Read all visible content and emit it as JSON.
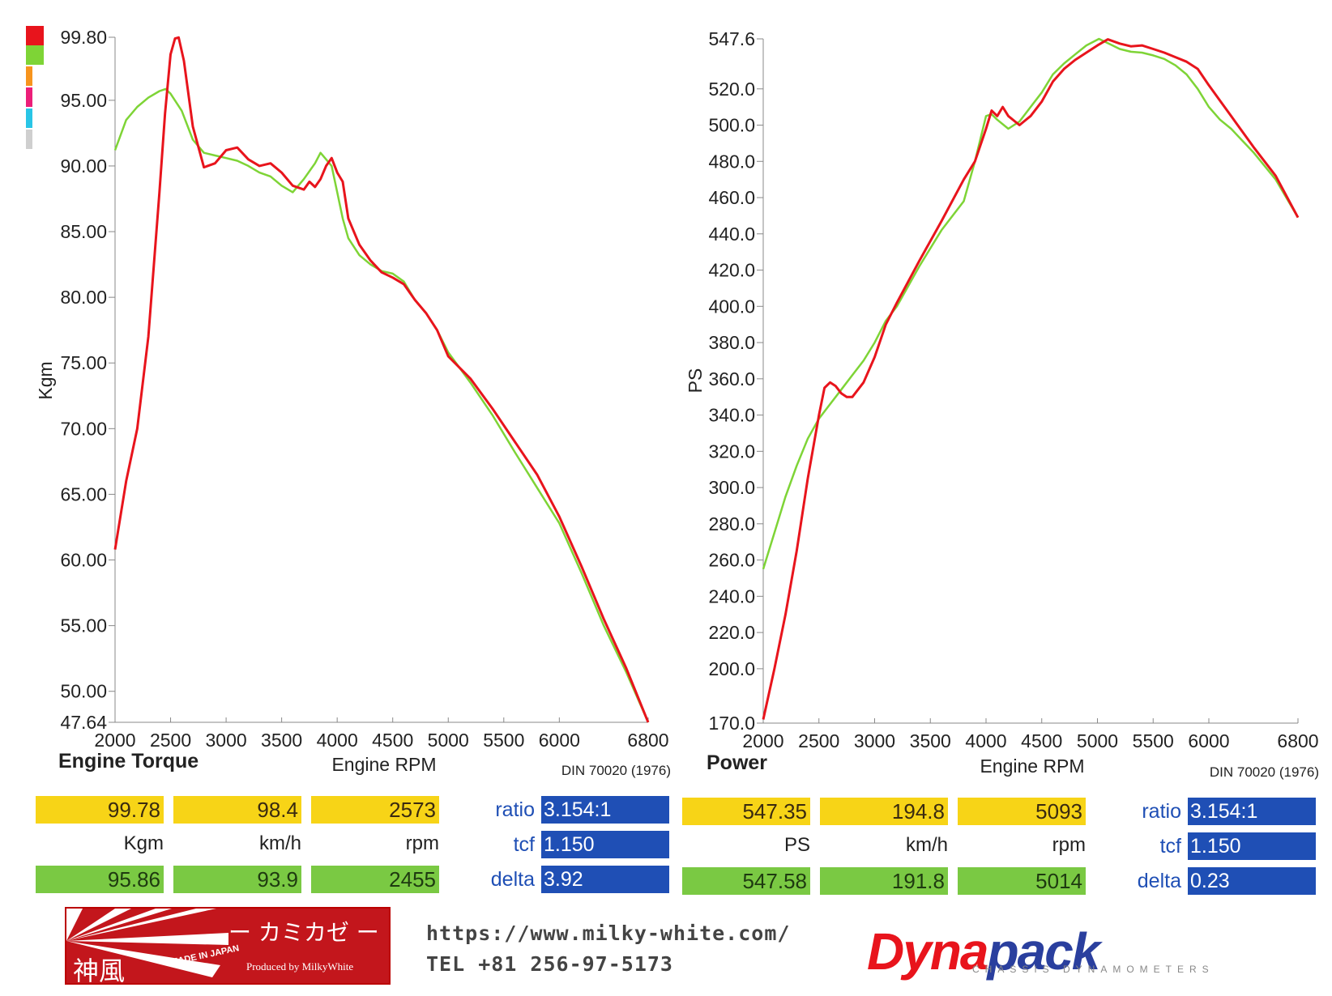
{
  "colors": {
    "run1": "#e8141c",
    "run2": "#7ed436",
    "yellow": "#f7d417",
    "green": "#7ac943",
    "blue": "#1f4fb5"
  },
  "legend_colors": [
    "#e8141c",
    "#7ed436",
    "#f7941d",
    "#ec1e79",
    "#29c5e6",
    "#cfcfcf"
  ],
  "chart_data": [
    {
      "type": "line",
      "title": "Engine Torque",
      "xlabel": "Engine RPM",
      "ylabel": "Kgm",
      "standard": "DIN 70020 (1976)",
      "xlim": [
        2000,
        6800
      ],
      "ylim": [
        47.64,
        99.8
      ],
      "x_ticks": [
        "2000",
        "2500",
        "3000",
        "3500",
        "4000",
        "4500",
        "5000",
        "5500",
        "6000",
        "6800"
      ],
      "y_ticks": [
        "47.64",
        "50.00",
        "55.00",
        "60.00",
        "65.00",
        "70.00",
        "75.00",
        "80.00",
        "85.00",
        "90.00",
        "95.00",
        "99.80"
      ],
      "series": [
        {
          "x": [
            2000,
            2100,
            2200,
            2300,
            2400,
            2450,
            2500,
            2540,
            2573,
            2620,
            2700,
            2800,
            2900,
            3000,
            3100,
            3200,
            3300,
            3400,
            3500,
            3600,
            3700,
            3750,
            3800,
            3850,
            3900,
            3950,
            4000,
            4050,
            4100,
            4200,
            4300,
            4400,
            4500,
            4600,
            4700,
            4800,
            4900,
            5000,
            5200,
            5400,
            5600,
            5800,
            6000,
            6200,
            6400,
            6600,
            6800
          ],
          "y": [
            60.8,
            66.0,
            70.0,
            77.0,
            88.0,
            94.0,
            98.5,
            99.7,
            99.78,
            98.0,
            93.0,
            89.9,
            90.2,
            91.2,
            91.4,
            90.5,
            90.0,
            90.2,
            89.5,
            88.5,
            88.2,
            88.8,
            88.4,
            89.0,
            90.0,
            90.6,
            89.5,
            88.8,
            86.0,
            84.0,
            82.8,
            81.9,
            81.5,
            81.0,
            79.8,
            78.8,
            77.5,
            75.5,
            73.8,
            71.5,
            69.0,
            66.5,
            63.3,
            59.5,
            55.5,
            51.8,
            47.64
          ]
        },
        {
          "x": [
            2000,
            2100,
            2200,
            2300,
            2400,
            2455,
            2500,
            2600,
            2700,
            2800,
            2900,
            3000,
            3100,
            3200,
            3300,
            3400,
            3500,
            3600,
            3700,
            3800,
            3850,
            3900,
            3950,
            4000,
            4050,
            4100,
            4200,
            4300,
            4400,
            4500,
            4600,
            4700,
            4800,
            4900,
            5000,
            5200,
            5400,
            5600,
            5800,
            6000,
            6200,
            6400,
            6600,
            6800
          ],
          "y": [
            91.2,
            93.5,
            94.5,
            95.2,
            95.7,
            95.86,
            95.5,
            94.2,
            92.0,
            91.0,
            90.8,
            90.6,
            90.4,
            90.0,
            89.5,
            89.2,
            88.5,
            88.0,
            89.0,
            90.2,
            91.0,
            90.5,
            90.0,
            88.0,
            86.0,
            84.5,
            83.2,
            82.5,
            82.0,
            81.8,
            81.2,
            79.8,
            78.8,
            77.5,
            75.8,
            73.5,
            71.0,
            68.2,
            65.5,
            62.8,
            59.0,
            55.0,
            51.5,
            47.64
          ]
        }
      ],
      "readouts": {
        "run1": [
          "99.78",
          "98.4",
          "2573"
        ],
        "units": [
          "Kgm",
          "km/h",
          "rpm"
        ],
        "run2": [
          "95.86",
          "93.9",
          "2455"
        ]
      },
      "params": {
        "ratio_label": "ratio",
        "ratio": "3.154:1",
        "tcf_label": "tcf",
        "tcf": "1.150",
        "delta_label": "delta",
        "delta": "3.92"
      }
    },
    {
      "type": "line",
      "title": "Power",
      "xlabel": "Engine RPM",
      "ylabel": "PS",
      "standard": "DIN 70020 (1976)",
      "xlim": [
        2000,
        6800
      ],
      "ylim": [
        170.0,
        547.6
      ],
      "x_ticks": [
        "2000",
        "2500",
        "3000",
        "3500",
        "4000",
        "4500",
        "5000",
        "5500",
        "6000",
        "6800"
      ],
      "y_ticks": [
        "170.0",
        "200.0",
        "220.0",
        "240.0",
        "260.0",
        "280.0",
        "300.0",
        "320.0",
        "340.0",
        "360.0",
        "380.0",
        "400.0",
        "420.0",
        "440.0",
        "460.0",
        "480.0",
        "500.0",
        "520.0",
        "547.6"
      ],
      "series": [
        {
          "x": [
            2000,
            2100,
            2200,
            2300,
            2400,
            2500,
            2550,
            2600,
            2650,
            2700,
            2750,
            2800,
            2900,
            3000,
            3100,
            3200,
            3400,
            3600,
            3800,
            3900,
            4000,
            4050,
            4100,
            4150,
            4200,
            4300,
            4400,
            4500,
            4600,
            4700,
            4800,
            4900,
            5000,
            5093,
            5200,
            5300,
            5400,
            5500,
            5600,
            5700,
            5800,
            5900,
            6000,
            6200,
            6400,
            6600,
            6800
          ],
          "y": [
            172.0,
            200.0,
            230.0,
            265.0,
            305.0,
            340.0,
            355.0,
            358.0,
            356.0,
            352.0,
            350.0,
            350.0,
            358.0,
            372.0,
            390.0,
            402.0,
            425.0,
            447.0,
            470.0,
            480.0,
            498.0,
            508.0,
            505.0,
            510.0,
            505.0,
            500.0,
            505.0,
            513.0,
            524.0,
            531.0,
            536.0,
            540.0,
            544.0,
            547.35,
            545.0,
            543.5,
            544.0,
            542.0,
            540.0,
            537.5,
            535.0,
            531.0,
            522.0,
            505.0,
            488.0,
            472.0,
            449.0
          ]
        },
        {
          "x": [
            2000,
            2100,
            2200,
            2300,
            2400,
            2500,
            2600,
            2700,
            2800,
            2900,
            3000,
            3100,
            3200,
            3400,
            3600,
            3800,
            3900,
            4000,
            4050,
            4100,
            4200,
            4300,
            4400,
            4500,
            4600,
            4700,
            4800,
            4900,
            5014,
            5100,
            5200,
            5300,
            5400,
            5500,
            5600,
            5700,
            5800,
            5900,
            6000,
            6100,
            6200,
            6400,
            6600,
            6800
          ],
          "y": [
            255.0,
            275.0,
            295.0,
            312.0,
            327.0,
            338.0,
            346.0,
            354.0,
            362.0,
            370.0,
            380.0,
            392.0,
            400.0,
            422.0,
            442.0,
            458.0,
            480.0,
            505.0,
            506.0,
            503.0,
            498.0,
            502.0,
            510.0,
            518.0,
            528.0,
            534.0,
            539.0,
            544.0,
            547.58,
            545.0,
            542.0,
            540.5,
            540.0,
            538.5,
            536.5,
            533.0,
            528.0,
            520.0,
            510.0,
            503.0,
            498.0,
            485.0,
            470.0,
            449.0
          ]
        }
      ],
      "readouts": {
        "run1": [
          "547.35",
          "194.8",
          "5093"
        ],
        "units": [
          "PS",
          "km/h",
          "rpm"
        ],
        "run2": [
          "547.58",
          "191.8",
          "5014"
        ]
      },
      "params": {
        "ratio_label": "ratio",
        "ratio": "3.154:1",
        "tcf_label": "tcf",
        "tcf": "1.150",
        "delta_label": "delta",
        "delta": "0.23"
      }
    }
  ],
  "branding": {
    "kamikaze_kana": "ー カミカゼ ー",
    "kamikaze_kanji": "神風",
    "made_in": "MADE IN JAPAN",
    "produced_by": "Produced by MilkyWhite",
    "url": "https://www.milky-white.com/",
    "tel": "TEL +81 256-97-5173",
    "dynapack_a": "Dyna",
    "dynapack_b": "pack",
    "dynapack_sub": "CHASSIS DYNAMOMETERS"
  }
}
